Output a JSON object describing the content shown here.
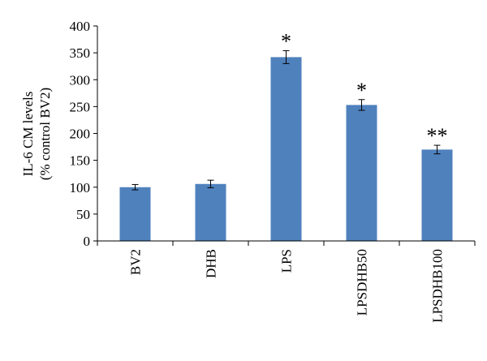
{
  "chart_data": {
    "type": "bar",
    "y_label": [
      "IL-6 CM levels",
      "(% control BV2)"
    ],
    "categories": [
      "BV2",
      "DHB",
      "LPS",
      "LPSDHB50",
      "LPSDHB100"
    ],
    "values": [
      100,
      106,
      342,
      253,
      170
    ],
    "errors": [
      5,
      7,
      12,
      10,
      8
    ],
    "annotations": [
      null,
      null,
      "*",
      "*",
      "**"
    ],
    "color": "#4f81bd",
    "ylim": [
      0,
      400
    ],
    "yticks": [
      0,
      50,
      100,
      150,
      200,
      250,
      300,
      350,
      400
    ],
    "grid": false
  }
}
